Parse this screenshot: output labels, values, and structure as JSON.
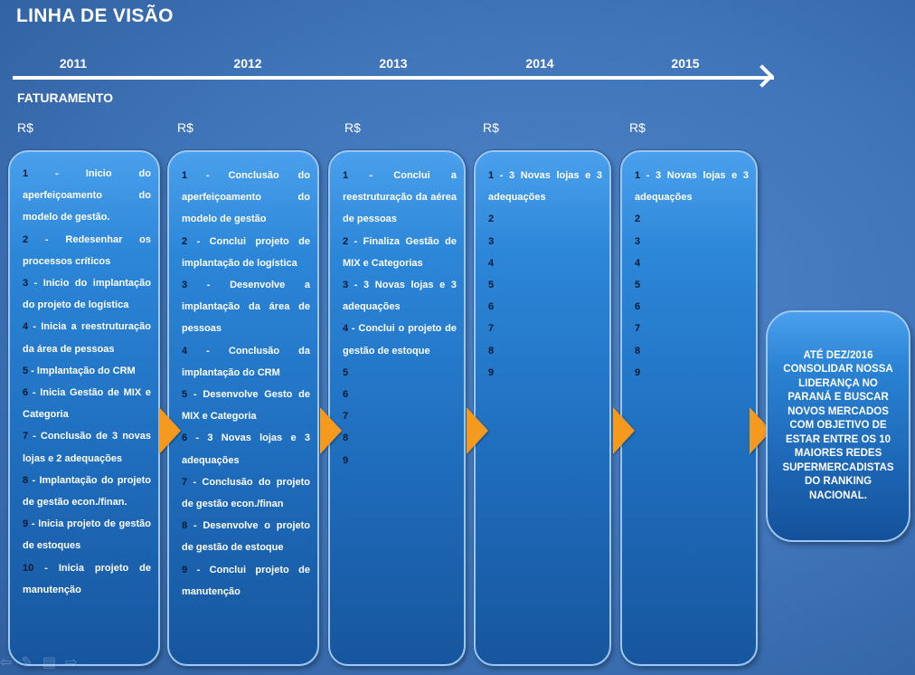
{
  "title": "LINHA DE VISÃO",
  "section_label": "FATURAMENTO",
  "years": [
    "2011",
    "2012",
    "2013",
    "2014",
    "2015"
  ],
  "currency_label": "R$",
  "columns": [
    {
      "year": "2011",
      "items": [
        {
          "num": "1",
          "text": " - Inicio do aperfeiçoamento do modelo de gestão."
        },
        {
          "num": "2",
          "text": " - Redesenhar os processos críticos"
        },
        {
          "num": "3",
          "text": " - Inicio do implantação do projeto de logística"
        },
        {
          "num": "4",
          "text": " - Inicia a reestruturação da área de pessoas"
        },
        {
          "num": "5",
          "text": " - Implantação do CRM"
        },
        {
          "num": "6",
          "text": " - Inicia Gestão de MIX e Categoria"
        },
        {
          "num": "7",
          "text": " - Conclusão de 3 novas lojas e 2 adequações"
        },
        {
          "num": "8",
          "text": " - Implantação do projeto de gestão econ./finan."
        },
        {
          "num": "9",
          "text": " - Inicia projeto de gestão de estoques"
        },
        {
          "num": "10",
          "text": " - Inicia projeto de manutenção"
        }
      ]
    },
    {
      "year": "2012",
      "items": [
        {
          "num": "1",
          "text": " - Conclusão do aperfeiçoamento do modelo de gestão"
        },
        {
          "num": "2",
          "text": " - Conclui projeto de implantação de logística"
        },
        {
          "num": "3",
          "text": " - Desenvolve a implantação da área de pessoas"
        },
        {
          "num": "4",
          "text": " - Conclusão da implantação do CRM"
        },
        {
          "num": "5",
          "text": " - Desenvolve Gesto de MIX e Categoria"
        },
        {
          "num": "6",
          "text": " - 3 Novas lojas e 3 adequações"
        },
        {
          "num": "7",
          "text": " - Conclusão do projeto de gestão econ./finan"
        },
        {
          "num": "8",
          "text": " - Desenvolve o projeto de gestão de estoque"
        },
        {
          "num": "9",
          "text": " - Conclui projeto de manutenção"
        }
      ]
    },
    {
      "year": "2013",
      "items": [
        {
          "num": "1",
          "text": " - Conclui a reestruturação da aérea de pessoas"
        },
        {
          "num": "2",
          "text": " - Finaliza Gestão de MIX e Categorias"
        },
        {
          "num": "3",
          "text": " - 3 Novas lojas e 3 adequações"
        },
        {
          "num": "4",
          "text": " - Conclui o projeto de gestão de estoque"
        },
        {
          "num": "5",
          "text": ""
        },
        {
          "num": "6",
          "text": ""
        },
        {
          "num": "7",
          "text": ""
        },
        {
          "num": "8",
          "text": ""
        },
        {
          "num": "9",
          "text": ""
        }
      ]
    },
    {
      "year": "2014",
      "items": [
        {
          "num": "1",
          "text": " - 3 Novas lojas e 3 adequações"
        },
        {
          "num": "2",
          "text": ""
        },
        {
          "num": "3",
          "text": ""
        },
        {
          "num": "4",
          "text": ""
        },
        {
          "num": "5",
          "text": ""
        },
        {
          "num": "6",
          "text": ""
        },
        {
          "num": "7",
          "text": ""
        },
        {
          "num": "8",
          "text": ""
        },
        {
          "num": "9",
          "text": ""
        }
      ]
    },
    {
      "year": "2015",
      "items": [
        {
          "num": "1",
          "text": " - 3 Novas lojas e 3 adequações"
        },
        {
          "num": "2",
          "text": ""
        },
        {
          "num": "3",
          "text": ""
        },
        {
          "num": "4",
          "text": ""
        },
        {
          "num": "5",
          "text": ""
        },
        {
          "num": "6",
          "text": ""
        },
        {
          "num": "7",
          "text": ""
        },
        {
          "num": "8",
          "text": ""
        },
        {
          "num": "9",
          "text": ""
        }
      ]
    }
  ],
  "goal_text": "ATÉ DEZ/2016 CONSOLIDAR NOSSA LIDERANÇA NO PARANÁ E BUSCAR NOVOS MERCADOS COM OBJETIVO DE ESTAR ENTRE OS 10 MAIORES REDES SUPERMERCADISTAS DO RANKING NACIONAL.",
  "colors": {
    "arrow": "#f59a1e",
    "number": "#0b1a33",
    "box_border": "#9cc7f3"
  },
  "footer_icons": [
    "back-icon",
    "pen-icon",
    "slides-icon",
    "forward-icon"
  ]
}
